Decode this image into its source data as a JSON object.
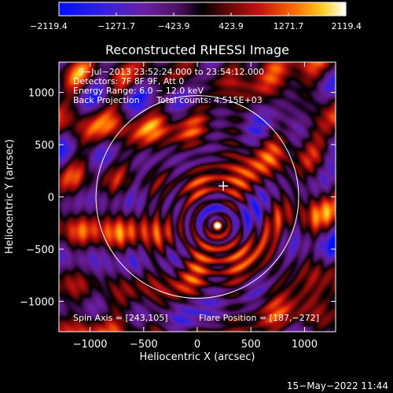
{
  "chart_data": {
    "type": "heatmap",
    "title": "Reconstructed RHESSI Image",
    "xlabel": "Heliocentric X (arcsec)",
    "ylabel": "Heliocentric Y (arcsec)",
    "xlim": [
      -1290,
      1290
    ],
    "ylim": [
      -1290,
      1290
    ],
    "x_ticks": [
      -1000,
      -500,
      0,
      500,
      1000
    ],
    "x_tick_labels": [
      "−1000",
      "−500",
      "0",
      "500",
      "1000"
    ],
    "y_ticks": [
      -1000,
      -500,
      0,
      500,
      1000
    ],
    "y_tick_labels": [
      "−1000",
      "−500",
      "0",
      "500",
      "1000"
    ],
    "colorbar": {
      "range": [
        -2119.4,
        2119.4
      ],
      "ticks": [
        -2119.4,
        -1271.7,
        -423.9,
        423.9,
        1271.7,
        2119.4
      ],
      "tick_labels": [
        "−2119.4",
        "−1271.7",
        "−423.9",
        "423.9",
        "1271.7",
        "2119.4"
      ]
    },
    "annotations": [
      "9−Jul−2013 23:52:24.000 to 23:54:12.000",
      "Detectors: 7F 8F 9F, Att 0",
      "Energy Range: 6.0 − 12.0 keV",
      "Back Projection",
      "Total counts: 4.515E+03"
    ],
    "spin_axis_label": "Spin Axis = [243,105]",
    "flare_position_label": "Flare Position = [187,−272]",
    "spin_axis": [
      243,
      105
    ],
    "flare_position": [
      187,
      -272
    ],
    "solar_limb_radius": 945,
    "grid": false
  },
  "timestamp": "15−May−2022 11:44",
  "colors": {
    "background": "#000000",
    "limb": "#ffffff",
    "marker": "#ffffff"
  }
}
